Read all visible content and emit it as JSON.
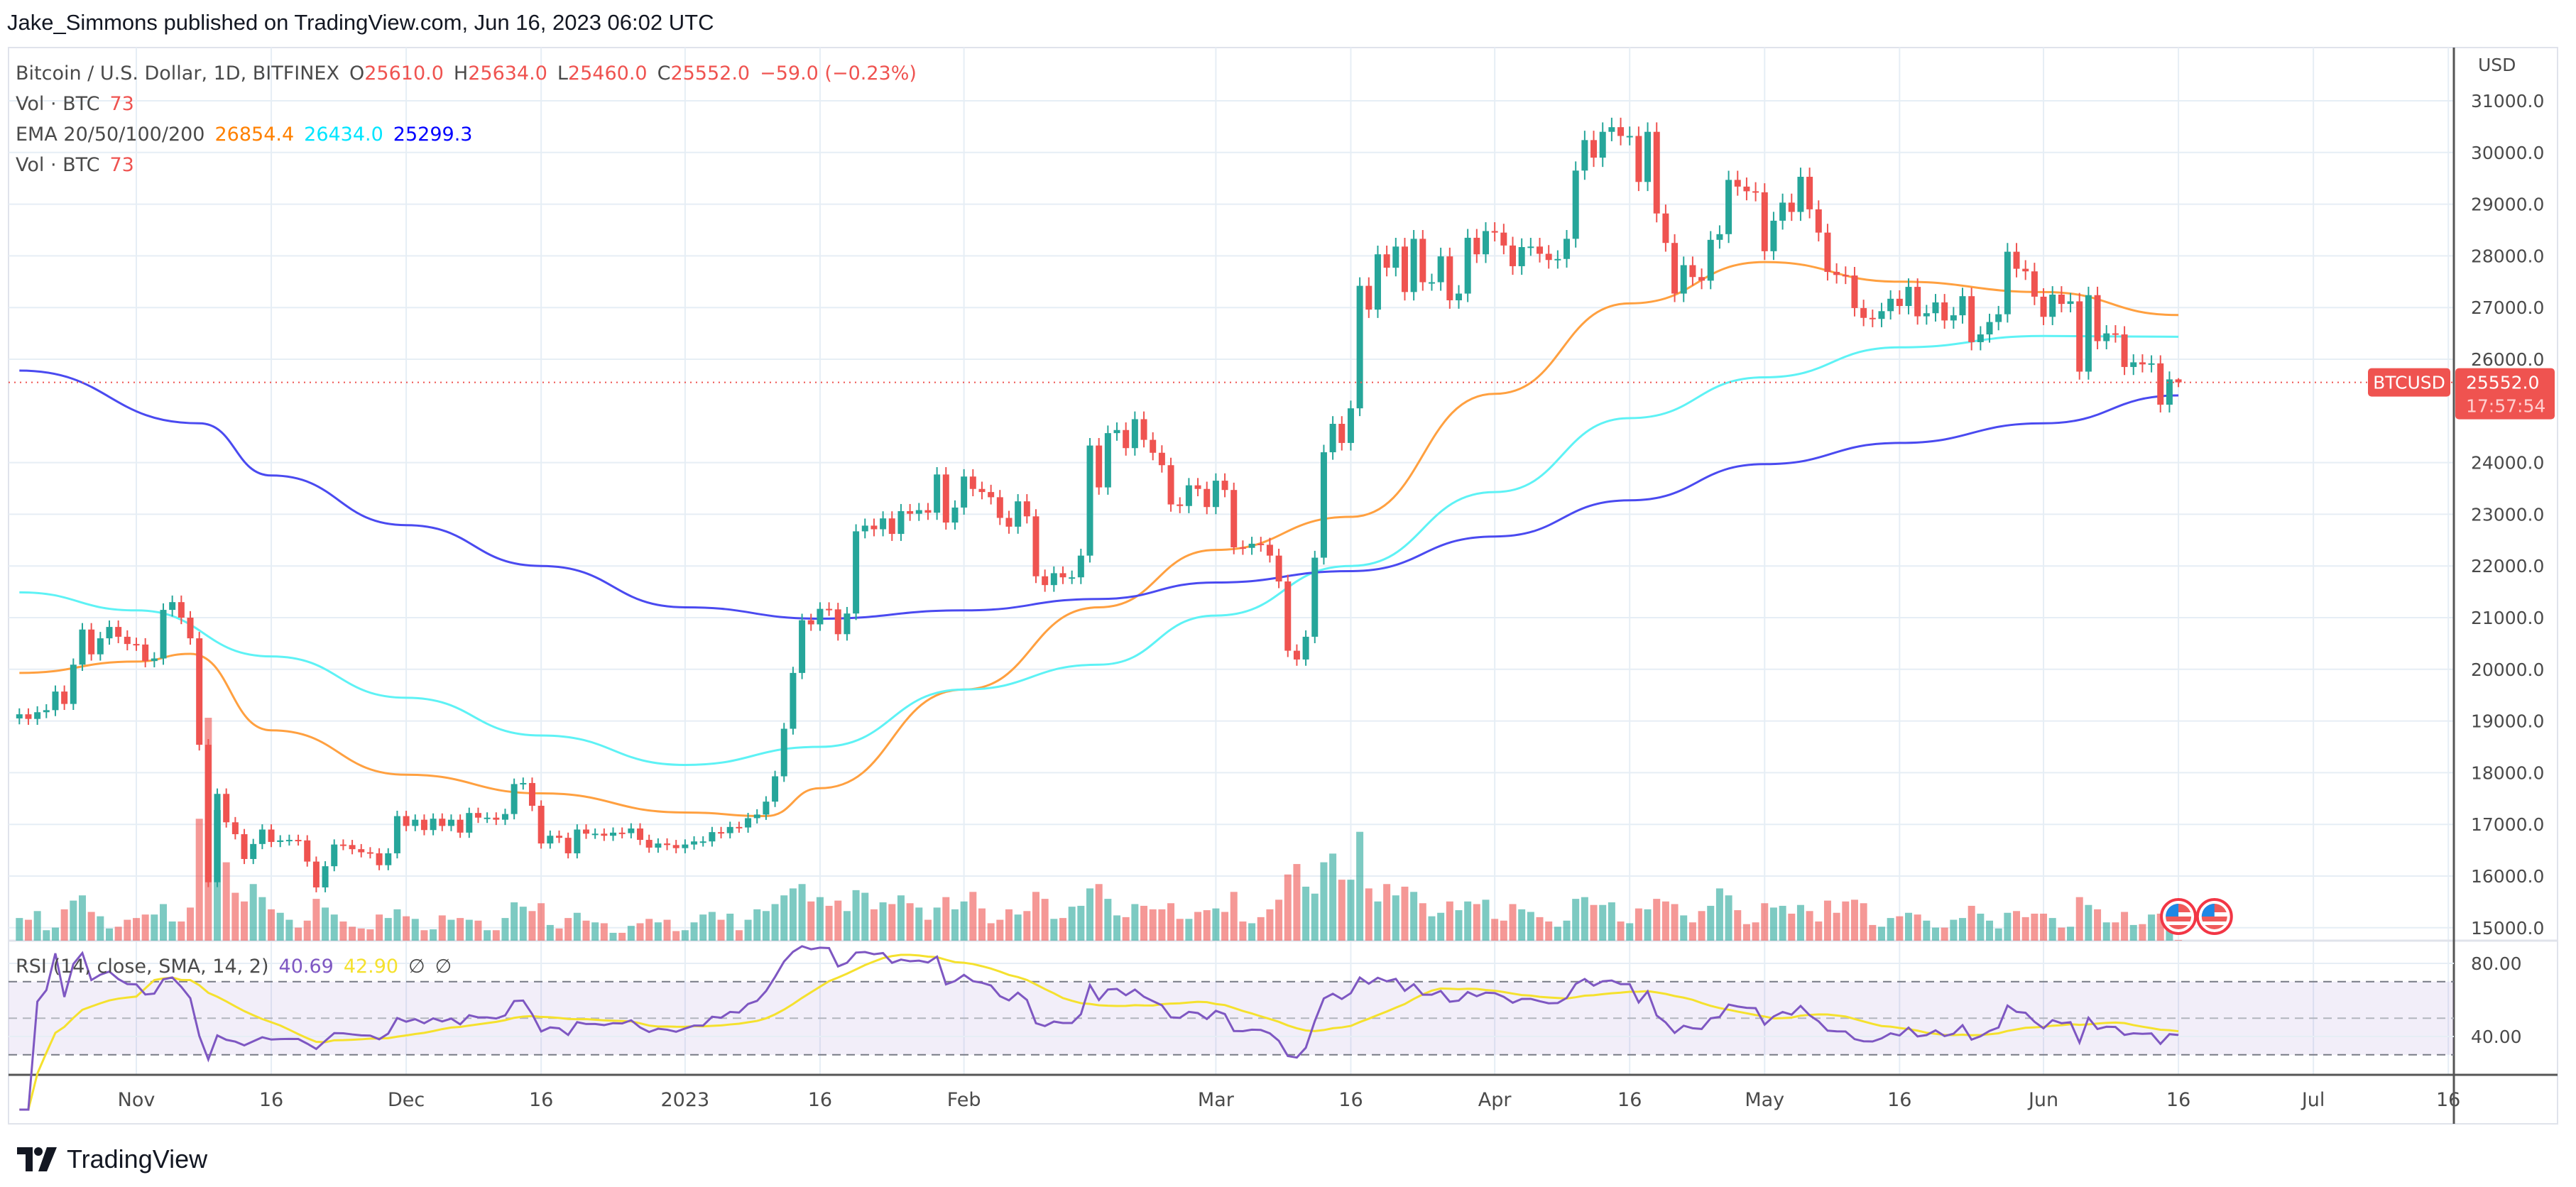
{
  "publisher_line": "Jake_Simmons published on TradingView.com, Jun 16, 2023 06:02 UTC",
  "legend": {
    "symbol": "Bitcoin / U.S. Dollar, 1D, BITFINEX",
    "open_label": "O",
    "open": "25610.0",
    "high_label": "H",
    "high": "25634.0",
    "low_label": "L",
    "low": "25460.0",
    "close_label": "C",
    "close": "25552.0",
    "change": "−59.0 (−0.23%)",
    "vol_label": "Vol · BTC",
    "vol_value": "73",
    "ema_label": "EMA 20/50/100/200",
    "ema_values": [
      "26854.4",
      "26434.0",
      "25299.3"
    ],
    "vol2_label": "Vol · BTC",
    "vol2_value": "73"
  },
  "price_axis": {
    "currency": "USD",
    "ticks": [
      "31000.0",
      "30000.0",
      "29000.0",
      "28000.0",
      "27000.0",
      "26000.0",
      "24000.0",
      "23000.0",
      "22000.0",
      "21000.0",
      "20000.0",
      "19000.0",
      "18000.0",
      "17000.0",
      "16000.0",
      "15000.0"
    ],
    "last_price": "25552.0",
    "countdown": "17:57:54",
    "symbol_tag": "BTCUSD"
  },
  "rsi": {
    "label": "RSI (14, close, SMA, 14, 2)",
    "value": "40.69",
    "sma_value": "42.90",
    "extra1": "∅",
    "extra2": "∅",
    "ticks": [
      "80.00",
      "40.00"
    ],
    "upper_band": 70,
    "middle_band": 50,
    "lower_band": 30
  },
  "time_axis": {
    "ticks": [
      {
        "date": "2022-11-01",
        "label": "Nov"
      },
      {
        "date": "2022-11-16",
        "label": "16"
      },
      {
        "date": "2022-12-01",
        "label": "Dec"
      },
      {
        "date": "2022-12-16",
        "label": "16"
      },
      {
        "date": "2023-01-01",
        "label": "2023"
      },
      {
        "date": "2023-01-16",
        "label": "16"
      },
      {
        "date": "2023-02-01",
        "label": "Feb"
      },
      {
        "date": "2023-03-01",
        "label": "Mar"
      },
      {
        "date": "2023-03-16",
        "label": "16"
      },
      {
        "date": "2023-04-01",
        "label": "Apr"
      },
      {
        "date": "2023-04-16",
        "label": "16"
      },
      {
        "date": "2023-05-01",
        "label": "May"
      },
      {
        "date": "2023-05-16",
        "label": "16"
      },
      {
        "date": "2023-06-01",
        "label": "Jun"
      },
      {
        "date": "2023-06-16",
        "label": "16"
      },
      {
        "date": "2023-07-01",
        "label": "Jul"
      },
      {
        "date": "2023-07-16",
        "label": "16"
      }
    ]
  },
  "events": [
    {
      "date": "2023-06-16",
      "icon": "us-flag-icon"
    },
    {
      "date": "2023-06-20",
      "icon": "us-flag-icon"
    }
  ],
  "brand": "TradingView",
  "colors": {
    "up": "#26a69a",
    "down": "#ef5350",
    "vol_up": "#26a69a99",
    "vol_down": "#ef535099",
    "ema20": "#ff9800",
    "ema50": "#00e5ff",
    "ema100": "#3333ff",
    "ema_line_orange": "#ffa040",
    "ema_line_cyan": "#5ef2f5",
    "ema_line_blue": "#4a4af0",
    "rsi": "#7e57c2",
    "rsi_sma": "#f5e12e",
    "rsi_band": "#7e57c21a",
    "grid": "#e6eef5",
    "axis_text": "#4a4a4a"
  },
  "chart_data": {
    "type": "candlestick",
    "start_date": "2022-10-19",
    "interval": "1D",
    "ylim": [
      15000,
      31000
    ],
    "grid": true,
    "close": [
      19130,
      19040,
      19170,
      19210,
      19570,
      19330,
      20090,
      20770,
      20290,
      20600,
      20820,
      20630,
      20490,
      20480,
      20160,
      20210,
      21150,
      21300,
      21000,
      20600,
      18540,
      15880,
      17590,
      17040,
      16810,
      16330,
      16620,
      16900,
      16660,
      16690,
      16700,
      16690,
      16280,
      15780,
      16190,
      16610,
      16600,
      16520,
      16460,
      16440,
      16210,
      16440,
      17160,
      16970,
      17090,
      16890,
      17110,
      16970,
      17090,
      16840,
      17220,
      17130,
      17130,
      17090,
      17200,
      17780,
      17800,
      17360,
      16630,
      16780,
      16740,
      16440,
      16900,
      16820,
      16820,
      16780,
      16840,
      16830,
      16920,
      16700,
      16550,
      16630,
      16600,
      16540,
      16610,
      16670,
      16670,
      16850,
      16830,
      16950,
      16940,
      17120,
      17190,
      17440,
      17930,
      18850,
      19930,
      20950,
      20870,
      21170,
      21160,
      20680,
      21080,
      22670,
      22780,
      22710,
      22920,
      22620,
      23060,
      23010,
      23080,
      23030,
      23770,
      22840,
      23130,
      23730,
      23490,
      23430,
      23330,
      22930,
      22760,
      23250,
      22960,
      21800,
      21630,
      21860,
      21780,
      21780,
      22200,
      24330,
      23520,
      24570,
      24630,
      24280,
      24840,
      24440,
      24190,
      23950,
      23190,
      23160,
      23560,
      23490,
      23140,
      23650,
      23470,
      22360,
      22350,
      22430,
      22410,
      22200,
      21700,
      20360,
      20190,
      20630,
      22160,
      24200,
      24750,
      24380,
      25050,
      27420,
      26960,
      28030,
      27770,
      28180,
      27300,
      28330,
      27490,
      27490,
      27990,
      27140,
      27270,
      28350,
      28030,
      28480,
      28450,
      28200,
      27800,
      28170,
      28180,
      28040,
      27920,
      27940,
      28330,
      29650,
      30240,
      29900,
      30400,
      30490,
      30320,
      30320,
      29430,
      30400,
      28820,
      28250,
      27270,
      27820,
      27590,
      27520,
      28310,
      28420,
      29470,
      29340,
      29250,
      29230,
      28090,
      28680,
      29030,
      28850,
      29530,
      28900,
      28450,
      27690,
      27630,
      27620,
      26990,
      26800,
      26780,
      26930,
      27170,
      27030,
      27400,
      26830,
      26890,
      27100,
      26750,
      26850,
      27220,
      26330,
      26480,
      26720,
      26870,
      28080,
      27750,
      27700,
      27210,
      26820,
      27250,
      27070,
      27120,
      25760,
      27240,
      26350,
      26500,
      26480,
      25850,
      25940,
      25900,
      25920,
      25120,
      25610,
      25552
    ],
    "last_candle": {
      "open": 25610,
      "high": 25634,
      "low": 25460,
      "close": 25552
    },
    "volume": [
      2600,
      2400,
      3400,
      1200,
      1500,
      3600,
      4600,
      5200,
      3300,
      2800,
      1400,
      1600,
      2400,
      2600,
      3000,
      3000,
      4200,
      2200,
      2200,
      3800,
      14000,
      25600,
      15000,
      9000,
      5500,
      4500,
      6500,
      5000,
      3600,
      3200,
      2400,
      1500,
      2300,
      4800,
      3800,
      3000,
      2200,
      1600,
      1400,
      1300,
      3000,
      2600,
      3600,
      2800,
      2500,
      1200,
      1300,
      2900,
      2400,
      2600,
      2400,
      2300,
      1200,
      1200,
      2600,
      4400,
      3900,
      3400,
      4300,
      1800,
      1400,
      2600,
      3200,
      2300,
      2100,
      2000,
      900,
      900,
      1700,
      2000,
      2500,
      2100,
      2400,
      1100,
      1200,
      2100,
      3000,
      3300,
      2400,
      3100,
      1200,
      2400,
      3600,
      3400,
      4200,
      5200,
      6000,
      6500,
      4500,
      5000,
      4000,
      4600,
      3400,
      5800,
      5500,
      3600,
      4400,
      4200,
      5200,
      4300,
      3800,
      2400,
      3800,
      5000,
      3600,
      4500,
      5600,
      3700,
      2000,
      2400,
      3600,
      3000,
      3400,
      5600,
      4800,
      2500,
      2600,
      3900,
      4000,
      6000,
      6500,
      4800,
      2900,
      2700,
      4200,
      4000,
      3600,
      3600,
      4300,
      2500,
      2500,
      3300,
      3500,
      3700,
      3300,
      5600,
      2200,
      2000,
      2700,
      3600,
      4700,
      7600,
      8800,
      6200,
      5400,
      9000,
      10000,
      7000,
      7000,
      12500,
      6000,
      4500,
      6500,
      5200,
      6200,
      5600,
      4300,
      2800,
      3200,
      4500,
      3500,
      4500,
      4200,
      4700,
      2500,
      2300,
      4200,
      3600,
      3300,
      2700,
      2200,
      1600,
      2300,
      4800,
      5000,
      4100,
      4100,
      4400,
      2200,
      2000,
      3700,
      3600,
      4800,
      4500,
      4200,
      2900,
      2100,
      3400,
      4000,
      6000,
      5200,
      3500,
      1900,
      2100,
      4300,
      3800,
      4000,
      3100,
      4100,
      3400,
      2200,
      4600,
      3200,
      4500,
      4700,
      4300,
      1800,
      1600,
      2600,
      2800,
      3200,
      3000,
      2300,
      1500,
      1500,
      2400,
      2600,
      4000,
      3100,
      2300,
      1400,
      3200,
      3400,
      2700,
      3100,
      3100,
      2600,
      1500,
      1600,
      5000,
      4100,
      3600,
      2100,
      2100,
      3300,
      1800,
      1900,
      3000,
      3100,
      2200,
      73
    ],
    "ema_series": [
      {
        "name": "EMA 20",
        "color_key": "ema_line_orange",
        "points": [
          [
            "2022-10-19",
            19930
          ],
          [
            "2022-11-01",
            20150
          ],
          [
            "2022-11-07",
            20300
          ],
          [
            "2022-11-16",
            18820
          ],
          [
            "2022-12-01",
            17960
          ],
          [
            "2022-12-16",
            17600
          ],
          [
            "2023-01-01",
            17230
          ],
          [
            "2023-01-10",
            17160
          ],
          [
            "2023-01-16",
            17700
          ],
          [
            "2023-02-01",
            19610
          ],
          [
            "2023-02-16",
            21200
          ],
          [
            "2023-03-01",
            22310
          ],
          [
            "2023-03-16",
            22950
          ],
          [
            "2023-04-01",
            25330
          ],
          [
            "2023-04-16",
            27080
          ],
          [
            "2023-05-01",
            27880
          ],
          [
            "2023-05-16",
            27500
          ],
          [
            "2023-06-01",
            27300
          ],
          [
            "2023-06-16",
            26854.4
          ]
        ]
      },
      {
        "name": "EMA 50",
        "color_key": "ema_line_cyan",
        "points": [
          [
            "2022-10-19",
            21490
          ],
          [
            "2022-11-01",
            21140
          ],
          [
            "2022-11-16",
            20250
          ],
          [
            "2022-12-01",
            19450
          ],
          [
            "2022-12-16",
            18720
          ],
          [
            "2023-01-01",
            18150
          ],
          [
            "2023-01-16",
            18500
          ],
          [
            "2023-02-01",
            19610
          ],
          [
            "2023-02-16",
            20090
          ],
          [
            "2023-03-01",
            21040
          ],
          [
            "2023-03-16",
            22000
          ],
          [
            "2023-04-01",
            23430
          ],
          [
            "2023-04-16",
            24860
          ],
          [
            "2023-05-01",
            25650
          ],
          [
            "2023-05-16",
            26230
          ],
          [
            "2023-06-01",
            26450
          ],
          [
            "2023-06-16",
            26434.0
          ]
        ]
      },
      {
        "name": "EMA 100",
        "color_key": "ema_line_blue",
        "points": [
          [
            "2022-10-19",
            25780
          ],
          [
            "2022-11-08",
            24760
          ],
          [
            "2022-11-16",
            23750
          ],
          [
            "2022-12-01",
            22790
          ],
          [
            "2022-12-16",
            22000
          ],
          [
            "2023-01-01",
            21200
          ],
          [
            "2023-01-16",
            20980
          ],
          [
            "2023-02-01",
            21140
          ],
          [
            "2023-02-16",
            21360
          ],
          [
            "2023-03-01",
            21680
          ],
          [
            "2023-03-16",
            21900
          ],
          [
            "2023-04-01",
            22570
          ],
          [
            "2023-04-16",
            23270
          ],
          [
            "2023-05-01",
            23970
          ],
          [
            "2023-05-16",
            24380
          ],
          [
            "2023-06-01",
            24760
          ],
          [
            "2023-06-16",
            25299.3
          ]
        ]
      }
    ]
  }
}
